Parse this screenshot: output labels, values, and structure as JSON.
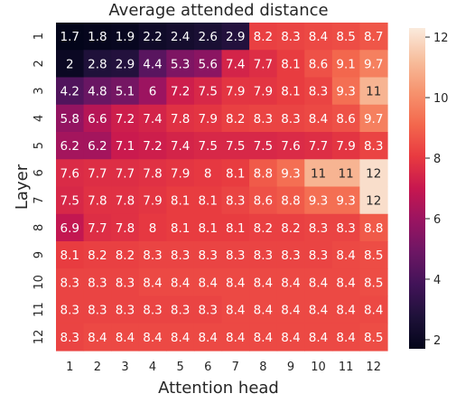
{
  "chart_data": {
    "type": "heatmap",
    "title": "Average attended distance",
    "xlabel": "Attention head",
    "ylabel": "Layer",
    "x_categories": [
      "1",
      "2",
      "3",
      "4",
      "5",
      "6",
      "7",
      "8",
      "9",
      "10",
      "11",
      "12"
    ],
    "y_categories": [
      "1",
      "2",
      "3",
      "4",
      "5",
      "6",
      "7",
      "8",
      "9",
      "10",
      "11",
      "12"
    ],
    "colorbar": {
      "min": 1.7,
      "max": 12.3,
      "ticks": [
        2,
        4,
        6,
        8,
        10,
        12
      ],
      "colormap": "rocket"
    },
    "values": [
      [
        1.7,
        1.8,
        1.9,
        2.2,
        2.4,
        2.6,
        2.9,
        8.2,
        8.3,
        8.4,
        8.5,
        8.7
      ],
      [
        2.0,
        2.8,
        2.9,
        4.4,
        5.3,
        5.6,
        7.4,
        7.7,
        8.1,
        8.6,
        9.1,
        9.7
      ],
      [
        4.2,
        4.8,
        5.1,
        6.0,
        7.2,
        7.5,
        7.9,
        7.9,
        8.1,
        8.3,
        9.3,
        11.0
      ],
      [
        5.8,
        6.6,
        7.2,
        7.4,
        7.8,
        7.9,
        8.2,
        8.3,
        8.3,
        8.4,
        8.6,
        9.7
      ],
      [
        6.2,
        6.2,
        7.1,
        7.2,
        7.4,
        7.5,
        7.5,
        7.5,
        7.6,
        7.7,
        7.9,
        8.3
      ],
      [
        7.6,
        7.7,
        7.7,
        7.8,
        7.9,
        8.0,
        8.1,
        8.8,
        9.3,
        11.0,
        11.0,
        12.0
      ],
      [
        7.5,
        7.8,
        7.8,
        7.9,
        8.1,
        8.1,
        8.3,
        8.6,
        8.8,
        9.3,
        9.3,
        12.0
      ],
      [
        6.9,
        7.7,
        7.8,
        8.0,
        8.1,
        8.1,
        8.1,
        8.2,
        8.2,
        8.3,
        8.3,
        8.8
      ],
      [
        8.1,
        8.2,
        8.2,
        8.3,
        8.3,
        8.3,
        8.3,
        8.3,
        8.3,
        8.3,
        8.4,
        8.5
      ],
      [
        8.3,
        8.3,
        8.3,
        8.4,
        8.4,
        8.4,
        8.4,
        8.4,
        8.4,
        8.4,
        8.4,
        8.5
      ],
      [
        8.3,
        8.3,
        8.3,
        8.3,
        8.3,
        8.3,
        8.4,
        8.4,
        8.4,
        8.4,
        8.4,
        8.4
      ],
      [
        8.3,
        8.4,
        8.4,
        8.4,
        8.4,
        8.4,
        8.4,
        8.4,
        8.4,
        8.4,
        8.4,
        8.5
      ]
    ],
    "cell_labels": [
      [
        "1.7",
        "1.8",
        "1.9",
        "2.2",
        "2.4",
        "2.6",
        "2.9",
        "8.2",
        "8.3",
        "8.4",
        "8.5",
        "8.7"
      ],
      [
        "2",
        "2.8",
        "2.9",
        "4.4",
        "5.3",
        "5.6",
        "7.4",
        "7.7",
        "8.1",
        "8.6",
        "9.1",
        "9.7"
      ],
      [
        "4.2",
        "4.8",
        "5.1",
        "6",
        "7.2",
        "7.5",
        "7.9",
        "7.9",
        "8.1",
        "8.3",
        "9.3",
        "11"
      ],
      [
        "5.8",
        "6.6",
        "7.2",
        "7.4",
        "7.8",
        "7.9",
        "8.2",
        "8.3",
        "8.3",
        "8.4",
        "8.6",
        "9.7"
      ],
      [
        "6.2",
        "6.2",
        "7.1",
        "7.2",
        "7.4",
        "7.5",
        "7.5",
        "7.5",
        "7.6",
        "7.7",
        "7.9",
        "8.3"
      ],
      [
        "7.6",
        "7.7",
        "7.7",
        "7.8",
        "7.9",
        "8",
        "8.1",
        "8.8",
        "9.3",
        "11",
        "11",
        "12"
      ],
      [
        "7.5",
        "7.8",
        "7.8",
        "7.9",
        "8.1",
        "8.1",
        "8.3",
        "8.6",
        "8.8",
        "9.3",
        "9.3",
        "12"
      ],
      [
        "6.9",
        "7.7",
        "7.8",
        "8",
        "8.1",
        "8.1",
        "8.1",
        "8.2",
        "8.2",
        "8.3",
        "8.3",
        "8.8"
      ],
      [
        "8.1",
        "8.2",
        "8.2",
        "8.3",
        "8.3",
        "8.3",
        "8.3",
        "8.3",
        "8.3",
        "8.3",
        "8.4",
        "8.5"
      ],
      [
        "8.3",
        "8.3",
        "8.3",
        "8.4",
        "8.4",
        "8.4",
        "8.4",
        "8.4",
        "8.4",
        "8.4",
        "8.4",
        "8.5"
      ],
      [
        "8.3",
        "8.3",
        "8.3",
        "8.3",
        "8.3",
        "8.3",
        "8.4",
        "8.4",
        "8.4",
        "8.4",
        "8.4",
        "8.4"
      ],
      [
        "8.3",
        "8.4",
        "8.4",
        "8.4",
        "8.4",
        "8.4",
        "8.4",
        "8.4",
        "8.4",
        "8.4",
        "8.4",
        "8.5"
      ]
    ]
  }
}
